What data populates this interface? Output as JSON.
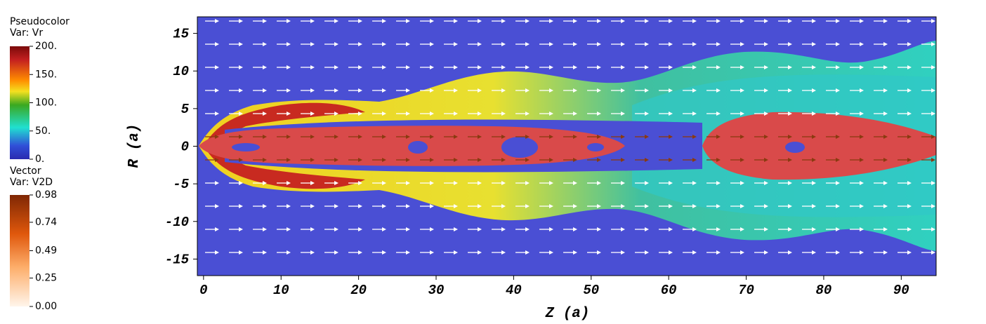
{
  "chart_data": {
    "type": "pseudocolor",
    "xlabel": "Z (a)",
    "ylabel": "R (a)",
    "xlim": [
      -0.8,
      94.5
    ],
    "xticks": [
      0,
      10,
      20,
      30,
      40,
      50,
      60,
      70,
      80,
      90
    ],
    "ylim": [
      -17.2,
      17.2
    ],
    "yticks": [
      -15,
      -10,
      -5,
      0,
      5,
      10,
      15
    ],
    "legends": [
      {
        "title": "Pseudocolor",
        "var": "Var: Vr",
        "range": [
          0,
          200
        ],
        "ticks": [
          {
            "value": 200,
            "label": "200."
          },
          {
            "value": 150,
            "label": "150."
          },
          {
            "value": 100,
            "label": "100."
          },
          {
            "value": 50,
            "label": "50."
          },
          {
            "value": 0,
            "label": "0."
          }
        ]
      },
      {
        "title": "Vector",
        "var": "Var: V2D",
        "range": [
          0,
          0.98
        ],
        "ticks": [
          0.98,
          0.74,
          0.49,
          0.25,
          {
            "value": 0,
            "label": "0.00"
          }
        ]
      }
    ]
  }
}
